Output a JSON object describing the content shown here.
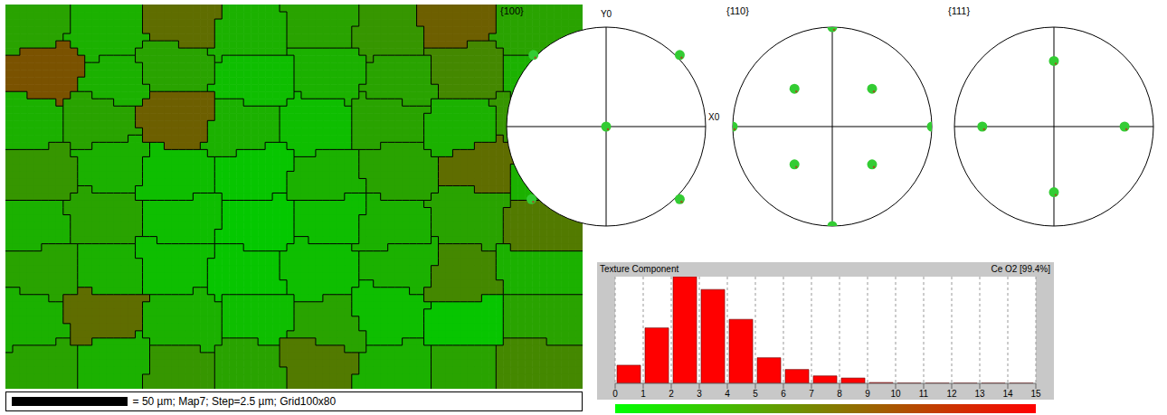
{
  "chart_data": [
    {
      "type": "bar",
      "title": "Texture Component",
      "subtitle": "Ce O2 [99.4%]",
      "bins": [
        0,
        1,
        2,
        3,
        4,
        5,
        6,
        7,
        8,
        9,
        10,
        11,
        12,
        13,
        14,
        15
      ],
      "values": [
        0.17,
        0.52,
        1.0,
        0.88,
        0.6,
        0.24,
        0.13,
        0.07,
        0.05,
        0.008,
        0.003,
        0.002,
        0.002,
        0.002,
        0.002
      ],
      "color": "#ff0000",
      "xlim": [
        0,
        15
      ],
      "xticks": [
        0,
        1,
        2,
        3,
        4,
        5,
        6,
        7,
        8,
        9,
        10,
        11,
        12,
        13,
        14,
        15
      ],
      "ylim": [
        0,
        1
      ],
      "grid": true,
      "tick_labels": "x",
      "colorbar": {
        "range": [
          0,
          15
        ],
        "colors": [
          "#00ff00",
          "#ff0000"
        ]
      }
    },
    {
      "type": "scatter",
      "title": "{100}",
      "xlabel": "X0",
      "ylabel": "Y0",
      "x": [
        0,
        -0.73,
        0.74,
        -0.75,
        0.74
      ],
      "values": [
        0,
        0.72,
        0.72,
        -0.73,
        -0.73
      ],
      "xlim": [
        -1,
        1
      ],
      "ylim": [
        -1,
        1
      ],
      "tick_labels": false,
      "color": "#33cc33"
    },
    {
      "type": "scatter",
      "title": "{110}",
      "x": [
        0,
        0,
        -1,
        1,
        -0.38,
        0.4,
        -0.38,
        0.4
      ],
      "values": [
        1,
        -1,
        0,
        0,
        0.38,
        0.38,
        -0.38,
        -0.38
      ],
      "xlim": [
        -1,
        1
      ],
      "ylim": [
        -1,
        1
      ],
      "tick_labels": false,
      "color": "#33cc33"
    },
    {
      "type": "scatter",
      "title": "{111}",
      "x": [
        0,
        0,
        -0.72,
        0.71
      ],
      "values": [
        0.66,
        -0.66,
        0,
        0
      ],
      "xlim": [
        -1,
        1
      ],
      "ylim": [
        -1,
        1
      ],
      "tick_labels": false,
      "color": "#33cc33"
    }
  ],
  "map": {
    "caption": "= 50 µm; Map7; Step=2.5 µm; Grid100x80",
    "scale_bar": 50,
    "xlim": [
      0,
      250
    ],
    "ylim": [
      0,
      200
    ],
    "grains": [
      [
        12,
        10,
        3
      ],
      [
        42,
        14,
        2
      ],
      [
        78,
        8,
        7
      ],
      [
        105,
        15,
        2
      ],
      [
        138,
        10,
        3
      ],
      [
        165,
        14,
        4
      ],
      [
        195,
        8,
        8
      ],
      [
        228,
        13,
        3
      ],
      [
        18,
        35,
        9
      ],
      [
        48,
        40,
        2
      ],
      [
        72,
        33,
        3
      ],
      [
        108,
        38,
        1
      ],
      [
        140,
        36,
        2
      ],
      [
        170,
        40,
        3
      ],
      [
        200,
        34,
        5
      ],
      [
        232,
        38,
        2
      ],
      [
        10,
        62,
        2
      ],
      [
        40,
        60,
        3
      ],
      [
        75,
        58,
        8
      ],
      [
        102,
        65,
        2
      ],
      [
        135,
        62,
        1
      ],
      [
        165,
        60,
        3
      ],
      [
        198,
        66,
        2
      ],
      [
        228,
        60,
        4
      ],
      [
        15,
        88,
        4
      ],
      [
        46,
        85,
        2
      ],
      [
        72,
        90,
        1
      ],
      [
        108,
        86,
        0.5
      ],
      [
        138,
        92,
        2
      ],
      [
        170,
        85,
        3
      ],
      [
        205,
        82,
        7
      ],
      [
        235,
        90,
        2
      ],
      [
        12,
        115,
        2
      ],
      [
        42,
        110,
        3
      ],
      [
        75,
        112,
        1
      ],
      [
        110,
        115,
        0.3
      ],
      [
        140,
        110,
        1
      ],
      [
        168,
        116,
        2
      ],
      [
        200,
        110,
        3
      ],
      [
        232,
        115,
        6
      ],
      [
        18,
        138,
        3
      ],
      [
        45,
        140,
        2
      ],
      [
        72,
        135,
        1
      ],
      [
        105,
        140,
        0.5
      ],
      [
        135,
        138,
        1
      ],
      [
        172,
        135,
        2
      ],
      [
        198,
        142,
        5
      ],
      [
        230,
        140,
        2
      ],
      [
        10,
        165,
        2
      ],
      [
        42,
        160,
        7
      ],
      [
        78,
        165,
        2
      ],
      [
        108,
        162,
        1
      ],
      [
        140,
        168,
        3
      ],
      [
        165,
        160,
        1
      ],
      [
        200,
        165,
        0.5
      ],
      [
        232,
        162,
        3
      ],
      [
        15,
        190,
        3
      ],
      [
        48,
        188,
        2
      ],
      [
        75,
        192,
        4
      ],
      [
        105,
        188,
        3
      ],
      [
        135,
        185,
        6
      ],
      [
        170,
        192,
        2
      ],
      [
        198,
        190,
        3
      ],
      [
        228,
        188,
        5
      ]
    ]
  }
}
